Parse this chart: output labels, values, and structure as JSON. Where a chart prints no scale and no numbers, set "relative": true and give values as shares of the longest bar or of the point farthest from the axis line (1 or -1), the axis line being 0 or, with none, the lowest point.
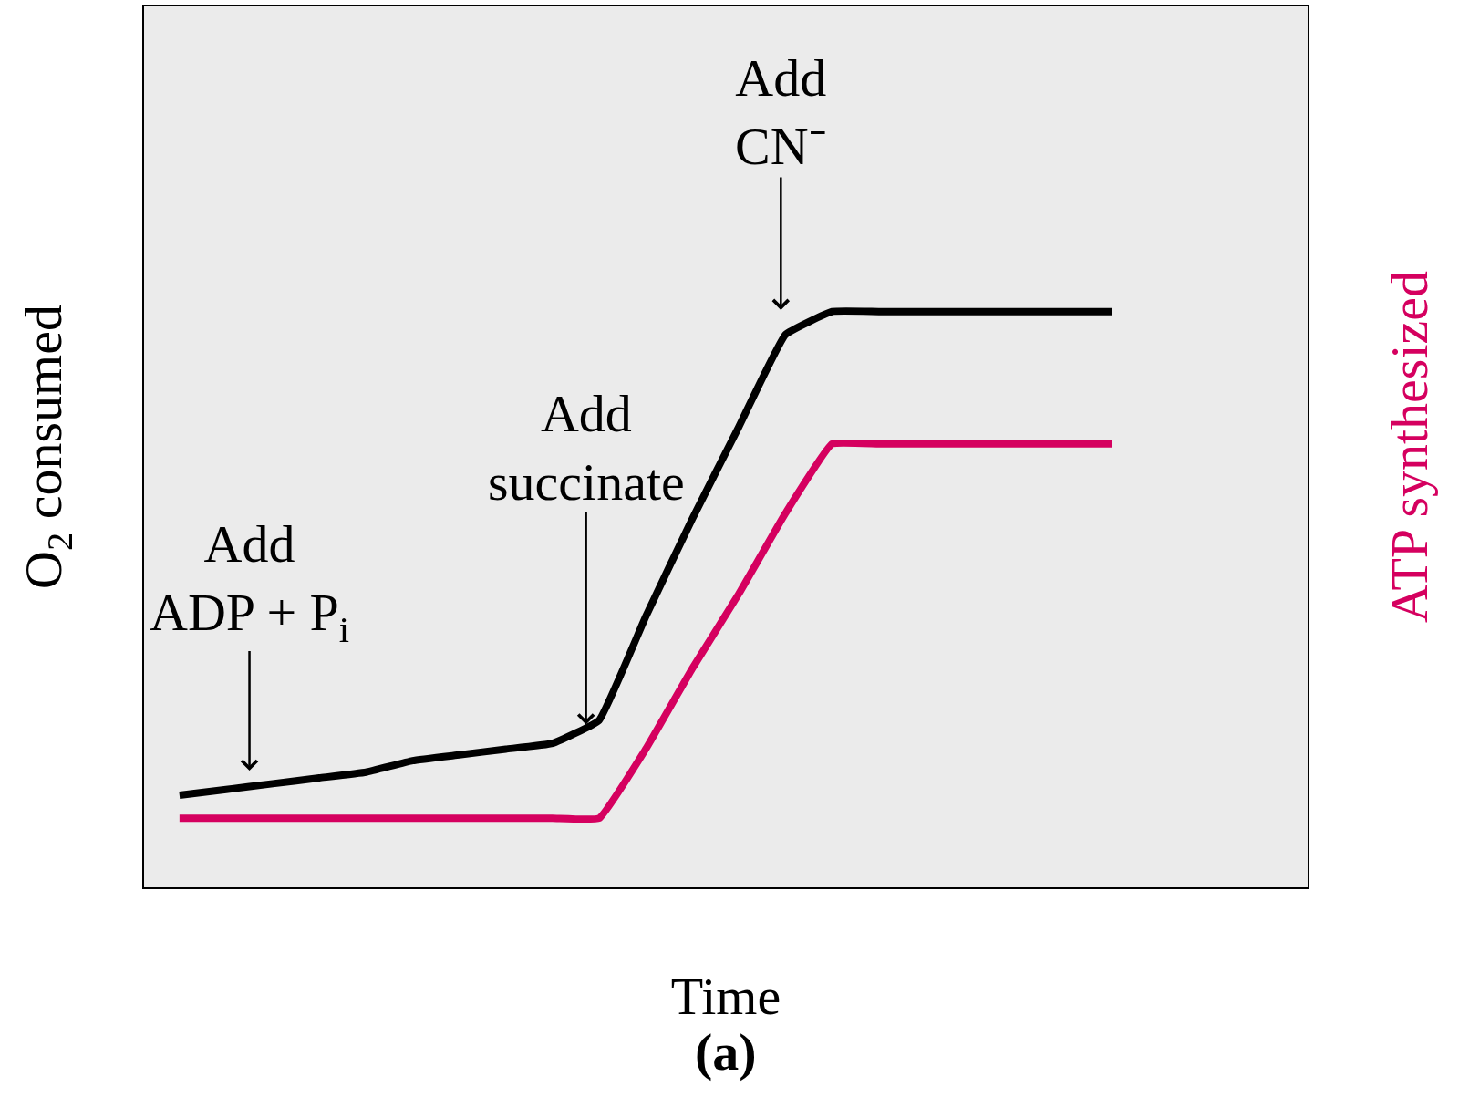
{
  "chart_data": {
    "type": "line",
    "relative": true,
    "xlabel": "Time",
    "ylabel": "O$_{2}$ consumed",
    "y2label": "ATP synthesized",
    "categories": [
      null,
      null,
      null,
      null,
      null,
      null,
      null,
      null,
      null,
      null,
      null,
      null,
      null,
      null,
      null,
      null,
      null,
      null,
      null,
      null,
      null
    ],
    "series": [
      {
        "color": "#000000",
        "values": [
          0.16,
          0.17,
          0.18,
          0.19,
          0.2,
          0.22,
          0.23,
          0.24,
          0.25,
          0.29,
          0.47,
          0.64,
          0.8,
          0.96,
          1.0,
          1.0,
          1.0,
          1.0,
          1.0,
          1.0,
          1.0
        ]
      },
      {
        "color": "#d5005f",
        "values": [
          0.12,
          0.12,
          0.12,
          0.12,
          0.12,
          0.12,
          0.12,
          0.12,
          0.12,
          0.12,
          0.24,
          0.38,
          0.51,
          0.65,
          0.77,
          0.77,
          0.77,
          0.77,
          0.77,
          0.77,
          0.77
        ]
      }
    ],
    "annotations": [
      "Add\nADP + P$_{i}$",
      "Add\nsuccinate",
      "Add\nCN⁻",
      "(a)"
    ],
    "grid": false,
    "marker": "none",
    "line_style": "solid"
  }
}
